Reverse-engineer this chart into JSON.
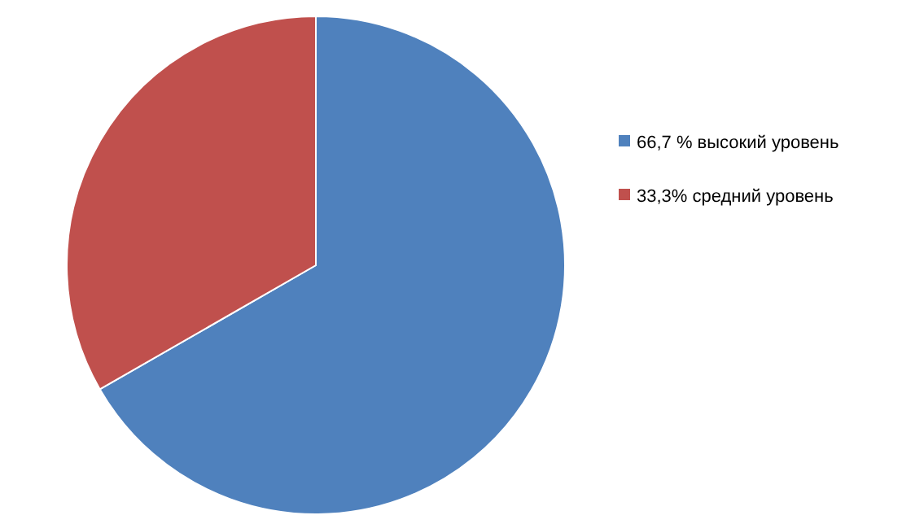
{
  "chart_data": {
    "type": "pie",
    "categories": [
      "66,7 % высокий уровень",
      "33,3% средний уровень"
    ],
    "values": [
      66.7,
      33.3
    ],
    "colors": [
      "#4f81bd",
      "#c0504d"
    ],
    "legend": "right"
  }
}
